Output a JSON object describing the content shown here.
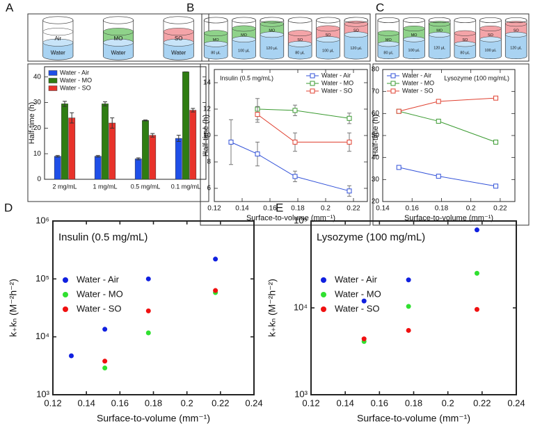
{
  "chart_data": [
    {
      "type": "bar",
      "panel": "A",
      "schematic": [
        {
          "top": "Air",
          "bottom": "Water",
          "color": "#ffffff"
        },
        {
          "top": "MO",
          "bottom": "Water",
          "color": "#8fd28a"
        },
        {
          "top": "SO",
          "bottom": "Water",
          "color": "#f4a4a8"
        }
      ],
      "water_color": "#a9d3f2",
      "categories": [
        "2 mg/mL",
        "1 mg/mL",
        "0.5 mg/mL",
        "0.1 mg/mL"
      ],
      "y_label": "Half-time (h)",
      "ylim": [
        0,
        44
      ],
      "yticks": [
        0,
        10,
        20,
        30,
        40
      ],
      "legend_loc": "upper left",
      "series": [
        {
          "name": "Water - Air",
          "color": "#1f4fe8",
          "values": [
            9,
            9,
            8,
            16
          ],
          "errors": [
            0.3,
            0.3,
            0.4,
            1.2
          ]
        },
        {
          "name": "Water - MO",
          "color": "#2f7d12",
          "values": [
            29.5,
            29.5,
            23,
            42
          ],
          "errors": [
            1,
            0.8,
            0.2,
            0
          ]
        },
        {
          "name": "Water - SO",
          "color": "#e8322a",
          "values": [
            24,
            22,
            17.2,
            27
          ],
          "errors": [
            2,
            2,
            0.7,
            0.7
          ]
        }
      ]
    },
    {
      "type": "line",
      "panel": "B",
      "schematic": [
        {
          "top": "MO",
          "bottom": "80 µL",
          "color": "#8fd28a"
        },
        {
          "top": "MO",
          "bottom": "100 µL",
          "color": "#8fd28a"
        },
        {
          "top": "MO",
          "bottom": "120 µL",
          "color": "#8fd28a"
        },
        {
          "top": "SO",
          "bottom": "80 µL",
          "color": "#f4a4a8"
        },
        {
          "top": "SO",
          "bottom": "100 µL",
          "color": "#f4a4a8"
        },
        {
          "top": "SO",
          "bottom": "120 µL",
          "color": "#f4a4a8"
        }
      ],
      "water_color": "#a9d3f2",
      "annotation": "Insulin (0.5 mg/mL)",
      "annotation_loc": "upper left",
      "legend_loc": "upper right",
      "x_label": "Surface-to-volume (mm⁻¹)",
      "y_label": "Half-time (h)",
      "xlim": [
        0.12,
        0.23
      ],
      "xticks": [
        0.12,
        0.14,
        0.16,
        0.18,
        0.2,
        0.22
      ],
      "ylim": [
        5,
        15
      ],
      "yticks": [
        6,
        8,
        10,
        12,
        14
      ],
      "series": [
        {
          "name": "Water - Air",
          "color": "#3050d8",
          "x": [
            0.132,
            0.151,
            0.178,
            0.217
          ],
          "values": [
            9.5,
            8.6,
            6.9,
            5.8
          ],
          "errors": [
            1.7,
            0.9,
            0.4,
            0.4
          ]
        },
        {
          "name": "Water - MO",
          "color": "#3a9a30",
          "x": [
            0.151,
            0.178,
            0.217
          ],
          "values": [
            12.0,
            11.9,
            11.3
          ],
          "errors": [
            0.8,
            0.4,
            0.4
          ]
        },
        {
          "name": "Water - SO",
          "color": "#e04030",
          "x": [
            0.151,
            0.178,
            0.217
          ],
          "values": [
            11.6,
            9.5,
            9.5
          ],
          "errors": [
            0.6,
            0.7,
            0.7
          ]
        }
      ]
    },
    {
      "type": "line",
      "panel": "C",
      "schematic": [
        {
          "top": "MO",
          "bottom": "80 µL",
          "color": "#8fd28a"
        },
        {
          "top": "MO",
          "bottom": "100 µL",
          "color": "#8fd28a"
        },
        {
          "top": "MO",
          "bottom": "120 µL",
          "color": "#8fd28a"
        },
        {
          "top": "SO",
          "bottom": "80 µL",
          "color": "#f4a4a8"
        },
        {
          "top": "SO",
          "bottom": "100 µL",
          "color": "#f4a4a8"
        },
        {
          "top": "SO",
          "bottom": "120 µL",
          "color": "#f4a4a8"
        }
      ],
      "water_color": "#a9d3f2",
      "annotation": "Lysozyme (100 mg/mL)",
      "annotation_loc": "upper right",
      "legend_loc": "upper left",
      "x_label": "Surface-to-volume (mm⁻¹)",
      "y_label": "Half-time (h)",
      "xlim": [
        0.14,
        0.23
      ],
      "xticks": [
        0.14,
        0.16,
        0.18,
        0.2,
        0.22
      ],
      "ylim": [
        20,
        80
      ],
      "yticks": [
        20,
        30,
        40,
        50,
        60,
        70,
        80
      ],
      "series": [
        {
          "name": "Water - Air",
          "color": "#3050d8",
          "x": [
            0.151,
            0.178,
            0.217
          ],
          "values": [
            35.5,
            31.5,
            27
          ]
        },
        {
          "name": "Water - MO",
          "color": "#3a9a30",
          "x": [
            0.151,
            0.178,
            0.217
          ],
          "values": [
            61,
            56.5,
            47
          ]
        },
        {
          "name": "Water - SO",
          "color": "#e04030",
          "x": [
            0.151,
            0.178,
            0.217
          ],
          "values": [
            61,
            65.5,
            67
          ]
        }
      ]
    },
    {
      "type": "scatter",
      "panel": "D",
      "log_y": true,
      "annotation": "Insulin (0.5 mg/mL)",
      "annotation_loc": "upper left",
      "legend_loc": "center left",
      "x_label": "Surface-to-volume (mm⁻¹)",
      "y_label": "k₊kₙ (M⁻²h⁻²)",
      "xlim": [
        0.12,
        0.24
      ],
      "xticks": [
        0.12,
        0.14,
        0.16,
        0.18,
        0.2,
        0.22,
        0.24
      ],
      "ylim": [
        1000,
        1000000
      ],
      "yticks": [
        {
          "value": 1000,
          "label": "10³"
        },
        {
          "value": 10000,
          "label": "10⁴"
        },
        {
          "value": 100000,
          "label": "10⁵"
        },
        {
          "value": 1000000,
          "label": "10⁶"
        }
      ],
      "series": [
        {
          "name": "Water - Air",
          "color": "#1020e0",
          "x": [
            0.131,
            0.151,
            0.177,
            0.217
          ],
          "values": [
            4700,
            13500,
            100000,
            220000
          ]
        },
        {
          "name": "Water - MO",
          "color": "#30e030",
          "x": [
            0.151,
            0.177,
            0.217
          ],
          "values": [
            2900,
            11700,
            58000
          ]
        },
        {
          "name": "Water - SO",
          "color": "#f01010",
          "x": [
            0.151,
            0.177,
            0.217
          ],
          "values": [
            3800,
            28000,
            63000
          ]
        }
      ]
    },
    {
      "type": "scatter",
      "panel": "E",
      "log_y": true,
      "annotation": "Lysozyme (100 mg/mL)",
      "annotation_loc": "upper left",
      "legend_loc": "center left",
      "x_label": "Surface-to-volume (mm⁻¹)",
      "y_label": "k₊kₙ (M⁻²h⁻²)",
      "xlim": [
        0.12,
        0.24
      ],
      "xticks": [
        0.12,
        0.14,
        0.16,
        0.18,
        0.2,
        0.22,
        0.24
      ],
      "ylim": [
        1000,
        100000
      ],
      "yticks": [
        {
          "value": 1000,
          "label": "10³"
        },
        {
          "value": 10000,
          "label": "10⁴"
        },
        {
          "value": 100000,
          "label": "10⁵"
        }
      ],
      "series": [
        {
          "name": "Water - Air",
          "color": "#1020e0",
          "x": [
            0.151,
            0.177,
            0.217
          ],
          "values": [
            12000,
            21000,
            79000
          ]
        },
        {
          "name": "Water - MO",
          "color": "#30e030",
          "x": [
            0.151,
            0.177,
            0.217
          ],
          "values": [
            4100,
            10400,
            25000
          ]
        },
        {
          "name": "Water - SO",
          "color": "#f01010",
          "x": [
            0.151,
            0.177,
            0.217
          ],
          "values": [
            4400,
            5500,
            9600
          ]
        }
      ]
    }
  ]
}
